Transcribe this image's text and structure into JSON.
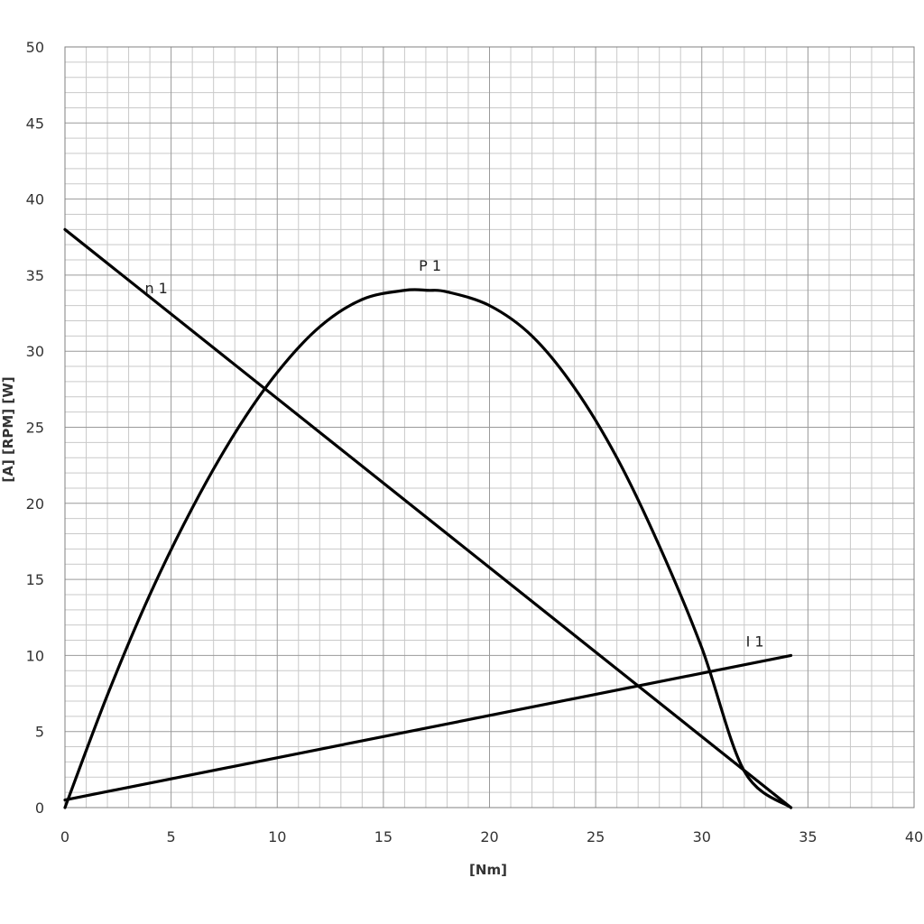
{
  "chart_data": {
    "type": "line",
    "title": "",
    "xlabel": "[Nm]",
    "ylabel": "[A]  [RPM]  [W]",
    "xlim": [
      0,
      40
    ],
    "ylim": [
      0,
      50
    ],
    "x_ticks": [
      0,
      5,
      10,
      15,
      20,
      25,
      30,
      35,
      40
    ],
    "y_ticks": [
      0,
      5,
      10,
      15,
      20,
      25,
      30,
      35,
      40,
      45,
      50
    ],
    "x_tick_labels": [
      "0",
      "5",
      "10",
      "15",
      "20",
      "25",
      "30",
      "35",
      "40"
    ],
    "y_tick_labels": [
      "0",
      "5",
      "10",
      "15",
      "20",
      "25",
      "30",
      "35",
      "40",
      "45",
      "50"
    ],
    "grid": true,
    "line_color": "#000000",
    "series": [
      {
        "name": "n 1",
        "x": [
          0,
          34.2
        ],
        "y": [
          38,
          0
        ]
      },
      {
        "name": "P 1",
        "x": [
          0,
          2,
          4,
          6,
          8,
          10,
          12,
          14,
          16,
          17.1,
          18,
          20,
          22,
          24,
          26,
          28,
          30,
          32,
          34.2
        ],
        "y": [
          0,
          7.4,
          14.0,
          19.7,
          24.6,
          28.6,
          31.6,
          33.4,
          34.0,
          34.0,
          33.9,
          33.0,
          31.0,
          27.6,
          23.0,
          17.2,
          10.5,
          2.4,
          0
        ]
      },
      {
        "name": "I 1",
        "x": [
          0,
          34.2
        ],
        "y": [
          0.5,
          10
        ]
      }
    ]
  }
}
